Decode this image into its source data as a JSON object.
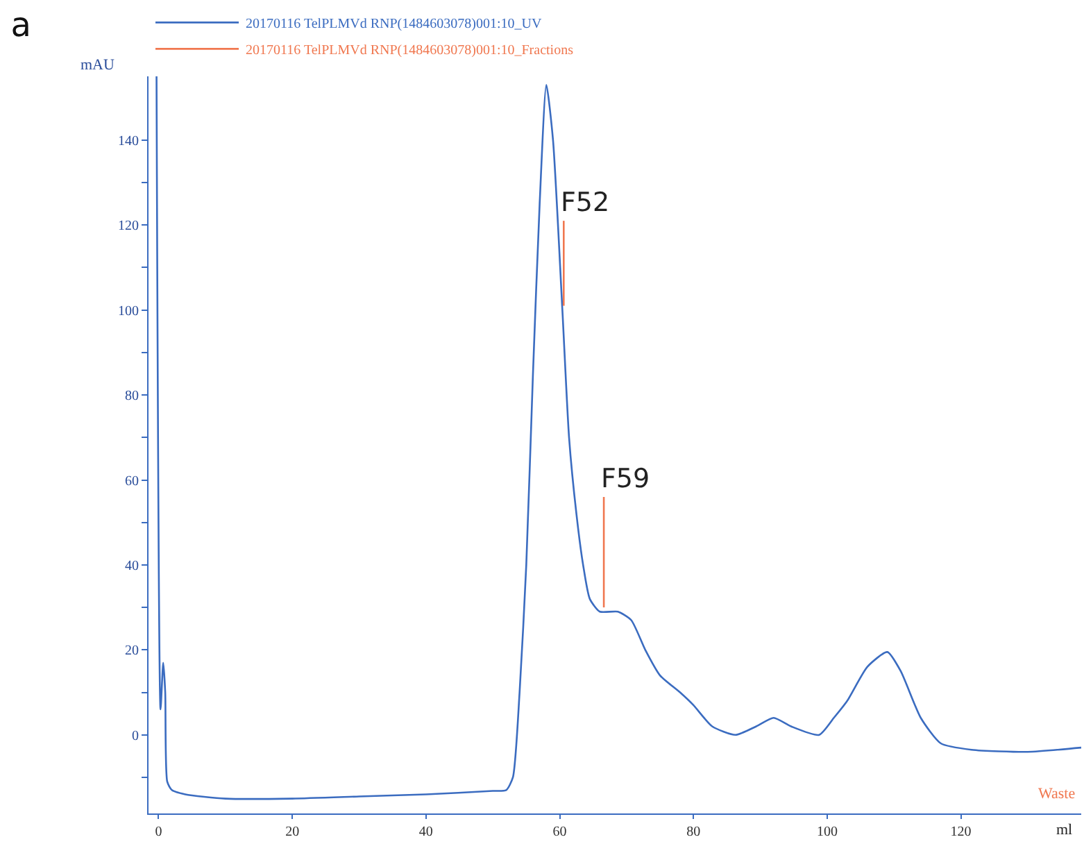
{
  "chart_data": {
    "type": "line",
    "title": "a",
    "xlabel": "ml",
    "ylabel": "mAU",
    "xlim": [
      -1.5,
      138
    ],
    "ylim": [
      -18.5,
      155
    ],
    "xticks": [
      0,
      20,
      40,
      60,
      80,
      100,
      120
    ],
    "yticks": [
      {
        "value": -10,
        "label": null
      },
      0,
      {
        "value": 10,
        "label": null
      },
      20,
      {
        "value": 30,
        "label": null
      },
      40,
      {
        "value": 50,
        "label": null
      },
      60,
      {
        "value": 70,
        "label": null
      },
      80,
      {
        "value": 90,
        "label": null
      },
      100,
      {
        "value": 110,
        "label": null
      },
      120,
      {
        "value": 130,
        "label": null
      },
      140
    ],
    "grid": false,
    "legend": "top left",
    "marker": "none",
    "line_style": "solid",
    "series": [
      {
        "name": "20170116 TelPLMVd RNP(1484603078)001:10_UV",
        "color": "#3b6cc0",
        "x": [
          -0.3,
          0.3,
          0.7,
          1,
          1.3,
          2,
          4,
          10,
          20,
          30,
          40,
          50,
          52,
          53,
          54,
          55,
          56,
          57,
          58,
          59,
          60.4,
          61.4,
          62.5,
          63.5,
          64.5,
          66,
          68.7,
          70.7,
          72.8,
          75,
          78,
          80,
          82.8,
          86.3,
          89.4,
          92,
          94.6,
          98.8,
          101,
          103,
          106,
          109,
          111,
          114,
          117,
          121.6,
          130,
          138
        ],
        "values": [
          155,
          6,
          17,
          10,
          -11,
          -13,
          -14,
          -15,
          -15,
          -14.5,
          -14,
          -13.2,
          -13,
          -10,
          10,
          40,
          85,
          125,
          153,
          140,
          100,
          70,
          52,
          40,
          32,
          29,
          29,
          27,
          20,
          14,
          10,
          7,
          2,
          0,
          2,
          4,
          2,
          0,
          4,
          8,
          16,
          19.5,
          15,
          4,
          -2,
          -3.5,
          -4,
          -3
        ]
      },
      {
        "name": "20170116 TelPLMVd RNP(1484603078)001:10_Fractions",
        "color": "#f07850",
        "x": [
          60.6,
          60.6,
          null,
          66.6,
          66.6
        ],
        "values": [
          101,
          121,
          null,
          30,
          56
        ]
      }
    ],
    "annotations": [
      {
        "text": "F52",
        "x": 60.6,
        "y": 121
      },
      {
        "text": "F59",
        "x": 66.6,
        "y": 56
      },
      "Waste"
    ]
  }
}
